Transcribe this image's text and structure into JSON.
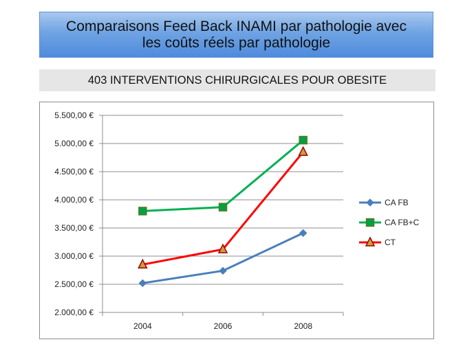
{
  "slide": {
    "title_line1": "Comparaisons Feed Back INAMI par pathologie avec",
    "title_line2": "les coûts réels par pathologie",
    "subtitle": "403 INTERVENTIONS CHIRURGICALES POUR OBESITE"
  },
  "chart_data": {
    "type": "line",
    "categories": [
      "2004",
      "2006",
      "2008"
    ],
    "series": [
      {
        "name": "CA FB",
        "values": [
          2520,
          2740,
          3410
        ],
        "color": "#4a7ebb",
        "marker": "diamond"
      },
      {
        "name": "CA FB+C",
        "values": [
          3800,
          3870,
          5060
        ],
        "color": "#00b050",
        "marker": "square"
      },
      {
        "name": "CT",
        "values": [
          2850,
          3120,
          4850
        ],
        "color": "#ff0000",
        "marker": "triangle"
      }
    ],
    "y_ticks": [
      "2.000,00 €",
      "2.500,00 €",
      "3.000,00 €",
      "3.500,00 €",
      "4.000,00 €",
      "4.500,00 €",
      "5.000,00 €",
      "5.500,00 €"
    ],
    "y_tick_values": [
      2000,
      2500,
      3000,
      3500,
      4000,
      4500,
      5000,
      5500
    ],
    "ylim": [
      2000,
      5500
    ],
    "gridlines": true,
    "legend_position": "right",
    "title": "",
    "xlabel": "",
    "ylabel": ""
  }
}
